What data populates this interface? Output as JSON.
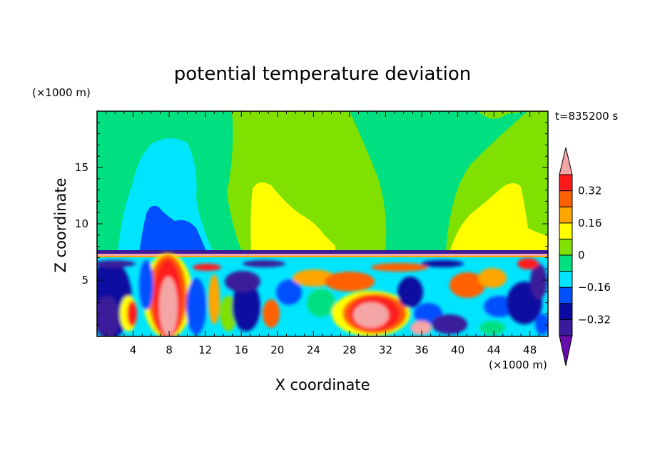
{
  "chart_data": {
    "type": "heatmap",
    "title": "potential temperature deviation",
    "xlabel": "X coordinate",
    "ylabel": "Z coordinate",
    "x_unit": "(×1000 m)",
    "y_unit": "(×1000 m)",
    "time_label": "t=835200 s",
    "xlim": [
      0,
      50
    ],
    "ylim": [
      0,
      20
    ],
    "x_ticks": [
      "4",
      "8",
      "12",
      "16",
      "20",
      "24",
      "28",
      "32",
      "36",
      "40",
      "44",
      "48"
    ],
    "y_ticks": [
      "5",
      "10",
      "15"
    ],
    "colorbar": {
      "levels": [
        -0.4,
        -0.32,
        -0.24,
        -0.16,
        -0.08,
        0,
        0.08,
        0.16,
        0.24,
        0.32,
        0.4
      ],
      "labels": [
        "0.32",
        "0.16",
        "0",
        "−0.16",
        "−0.32"
      ],
      "colors": [
        "#6a0dad",
        "#3a1a9a",
        "#0a0aa0",
        "#0050ff",
        "#00e5ff",
        "#00e080",
        "#80e000",
        "#ffff00",
        "#ffa500",
        "#ff6000",
        "#ff1a1a",
        "#f4a6a6"
      ]
    },
    "features": {
      "upper_background": "#80e000",
      "regions": [
        {
          "value": 0.0,
          "label": "green band x=12-20",
          "color": "#00e080"
        },
        {
          "value": -0.12,
          "label": "cyan plume x=5-12",
          "color": "#00e5ff"
        },
        {
          "value": -0.2,
          "label": "blue core x=7-12",
          "color": "#0050ff"
        },
        {
          "value": 0.14,
          "label": "yellow region x=19-24",
          "color": "#ffff00"
        },
        {
          "value": 0.14,
          "label": "yellow region x=40-50",
          "color": "#ffff00"
        },
        {
          "value": 0.4,
          "label": "warm plume x=5-10",
          "color": "#f4a6a6"
        }
      ]
    }
  }
}
